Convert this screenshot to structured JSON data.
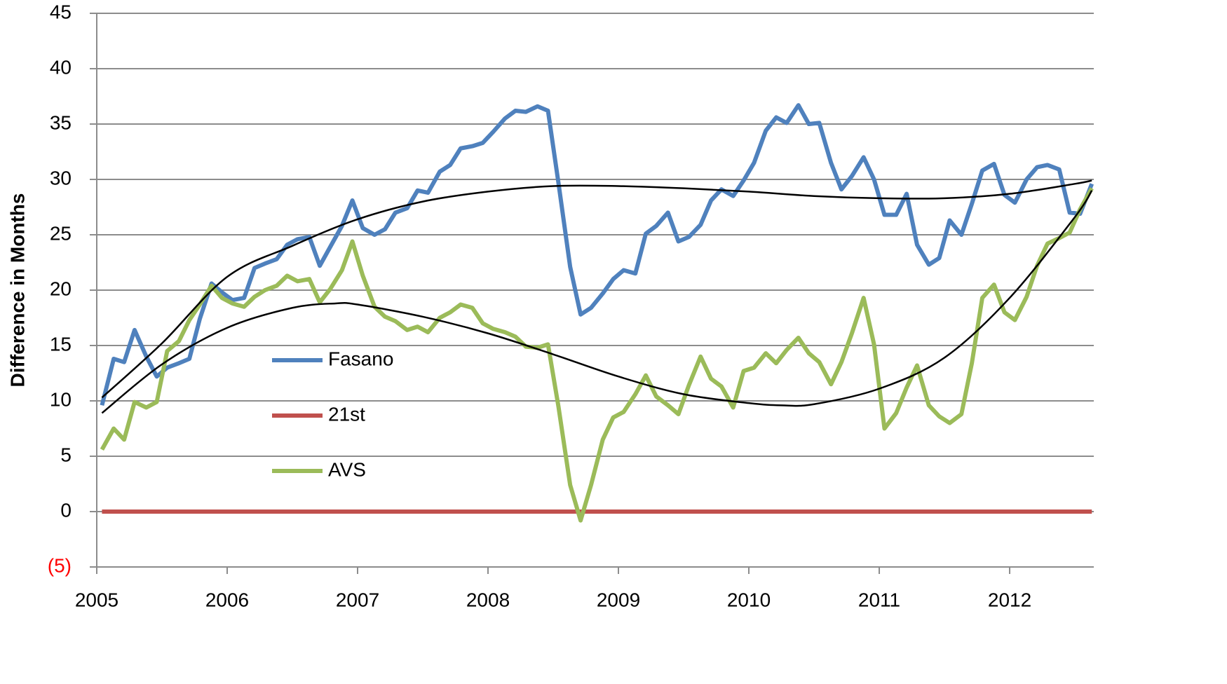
{
  "chart_data": {
    "type": "line",
    "y_label": "Difference in Months",
    "xlim": [
      2005,
      2012.645
    ],
    "xticks": [
      2005,
      2006,
      2007,
      2008,
      2009,
      2010,
      2011,
      2012
    ],
    "ylim": [
      -5,
      45
    ],
    "yticks": [
      {
        "value": -5,
        "label": "(5)"
      },
      0,
      5,
      10,
      15,
      20,
      25,
      30,
      35,
      40,
      45
    ],
    "negative_tick_color": "#ff0000",
    "grid": true,
    "x": [
      2005.04,
      2005.13,
      2005.21,
      2005.29,
      2005.38,
      2005.46,
      2005.54,
      2005.63,
      2005.71,
      2005.79,
      2005.88,
      2005.96,
      2006.04,
      2006.13,
      2006.21,
      2006.29,
      2006.38,
      2006.46,
      2006.54,
      2006.63,
      2006.71,
      2006.79,
      2006.88,
      2006.96,
      2007.04,
      2007.13,
      2007.21,
      2007.29,
      2007.38,
      2007.46,
      2007.54,
      2007.63,
      2007.71,
      2007.79,
      2007.88,
      2007.96,
      2008.04,
      2008.13,
      2008.21,
      2008.29,
      2008.38,
      2008.46,
      2008.54,
      2008.63,
      2008.71,
      2008.79,
      2008.88,
      2008.96,
      2009.04,
      2009.13,
      2009.21,
      2009.29,
      2009.38,
      2009.46,
      2009.54,
      2009.63,
      2009.71,
      2009.79,
      2009.88,
      2009.96,
      2010.04,
      2010.13,
      2010.21,
      2010.29,
      2010.38,
      2010.46,
      2010.54,
      2010.63,
      2010.71,
      2010.79,
      2010.88,
      2010.96,
      2011.04,
      2011.13,
      2011.21,
      2011.29,
      2011.38,
      2011.46,
      2011.54,
      2011.63,
      2011.71,
      2011.79,
      2011.88,
      2011.96,
      2012.04,
      2012.13,
      2012.21,
      2012.29,
      2012.38,
      2012.46,
      2012.54,
      2012.63
    ],
    "series": [
      {
        "name": "Fasano",
        "color": "#4f81bd",
        "values": [
          9.6,
          13.8,
          13.5,
          16.4,
          14,
          12.2,
          13,
          13.4,
          13.8,
          17.4,
          20.6,
          19.8,
          19.1,
          19.3,
          22,
          22.4,
          22.8,
          24.1,
          24.6,
          24.8,
          22.2,
          23.9,
          25.8,
          28.1,
          25.6,
          25,
          25.5,
          27,
          27.4,
          29,
          28.8,
          30.7,
          31.3,
          32.8,
          33,
          33.3,
          34.3,
          35.5,
          36.2,
          36.1,
          36.6,
          36.2,
          29.7,
          22.1,
          17.8,
          18.4,
          19.7,
          21,
          21.8,
          21.5,
          25.1,
          25.8,
          27,
          24.4,
          24.8,
          25.9,
          28.1,
          29.1,
          28.5,
          29.9,
          31.5,
          34.4,
          35.6,
          35.1,
          36.7,
          35,
          35.1,
          31.5,
          29.1,
          30.3,
          32,
          30,
          26.8,
          26.8,
          28.7,
          24.1,
          22.3,
          22.9,
          26.3,
          25,
          27.8,
          30.8,
          31.4,
          28.6,
          27.9,
          30,
          31.1,
          31.3,
          30.9,
          27,
          26.9,
          29.6
        ]
      },
      {
        "name": "21st",
        "color": "#c0504d",
        "values": [
          0,
          0,
          0,
          0,
          0,
          0,
          0,
          0,
          0,
          0,
          0,
          0,
          0,
          0,
          0,
          0,
          0,
          0,
          0,
          0,
          0,
          0,
          0,
          0,
          0,
          0,
          0,
          0,
          0,
          0,
          0,
          0,
          0,
          0,
          0,
          0,
          0,
          0,
          0,
          0,
          0,
          0,
          0,
          0,
          0,
          0,
          0,
          0,
          0,
          0,
          0,
          0,
          0,
          0,
          0,
          0,
          0,
          0,
          0,
          0,
          0,
          0,
          0,
          0,
          0,
          0,
          0,
          0,
          0,
          0,
          0,
          0,
          0,
          0,
          0,
          0,
          0,
          0,
          0,
          0,
          0,
          0,
          0,
          0,
          0,
          0,
          0,
          0,
          0,
          0,
          0,
          0
        ]
      },
      {
        "name": "AVS",
        "color": "#9bbb59",
        "values": [
          5.6,
          7.5,
          6.5,
          9.9,
          9.4,
          9.9,
          14.5,
          15.4,
          17.3,
          18.7,
          20.4,
          19.3,
          18.8,
          18.5,
          19.4,
          20,
          20.4,
          21.3,
          20.8,
          21,
          18.9,
          20.1,
          21.8,
          24.4,
          21.3,
          18.5,
          17.6,
          17.2,
          16.4,
          16.7,
          16.2,
          17.5,
          18,
          18.7,
          18.4,
          17,
          16.5,
          16.2,
          15.8,
          14.9,
          14.8,
          15.1,
          9.5,
          2.4,
          -0.8,
          2.4,
          6.5,
          8.5,
          9,
          10.6,
          12.3,
          10.4,
          9.6,
          8.8,
          11.4,
          14,
          12,
          11.3,
          9.4,
          12.7,
          13,
          14.3,
          13.4,
          14.6,
          15.7,
          14.3,
          13.5,
          11.5,
          13.5,
          16.1,
          19.3,
          15.1,
          7.5,
          8.9,
          11.2,
          13.2,
          9.6,
          8.6,
          8,
          8.8,
          13.4,
          19.3,
          20.5,
          18,
          17.3,
          19.4,
          22.2,
          24.2,
          24.7,
          25.2,
          27.3,
          29.2
        ]
      }
    ],
    "trendlines": [
      {
        "color": "#000000",
        "x": [
          2005.04,
          2005.5,
          2006,
          2006.5,
          2007,
          2007.5,
          2008,
          2008.5,
          2009,
          2009.5,
          2010,
          2010.5,
          2011,
          2011.5,
          2012,
          2012.5,
          2012.63
        ],
        "values": [
          10.3,
          15.2,
          21.2,
          24,
          26.4,
          28,
          28.9,
          29.4,
          29.4,
          29.2,
          28.9,
          28.5,
          28.3,
          28.3,
          28.7,
          29.6,
          29.9
        ]
      },
      {
        "color": "#000000",
        "x": [
          2005.04,
          2005.5,
          2006,
          2006.5,
          2006.83,
          2007,
          2007.5,
          2008,
          2008.5,
          2009,
          2009.5,
          2010,
          2010.25,
          2010.5,
          2011,
          2011.5,
          2012,
          2012.5,
          2012.63
        ],
        "values": [
          8.9,
          13.3,
          16.6,
          18.4,
          18.8,
          18.7,
          17.6,
          16.1,
          14.2,
          12.2,
          10.6,
          9.8,
          9.6,
          9.7,
          11.1,
          13.9,
          19.3,
          26.6,
          29
        ]
      }
    ]
  }
}
